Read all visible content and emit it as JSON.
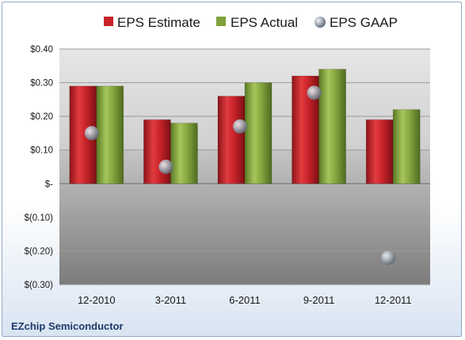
{
  "chart_data": {
    "type": "bar",
    "title": "",
    "company": "EZchip Semiconductor",
    "categories": [
      "12-2010",
      "3-2011",
      "6-2011",
      "9-2011",
      "12-2011"
    ],
    "series": [
      {
        "name": "EPS Estimate",
        "type": "bar",
        "color": "#c8232a",
        "values": [
          0.29,
          0.19,
          0.26,
          0.32,
          0.19
        ]
      },
      {
        "name": "EPS Actual",
        "type": "bar",
        "color": "#7ea13a",
        "values": [
          0.29,
          0.18,
          0.3,
          0.34,
          0.22
        ]
      },
      {
        "name": "EPS GAAP",
        "type": "marker",
        "color": "#9aa4ae",
        "values": [
          0.15,
          0.05,
          0.17,
          0.27,
          -0.22
        ]
      }
    ],
    "ylim": [
      -0.3,
      0.4
    ],
    "yticks": [
      0.4,
      0.3,
      0.2,
      0.1,
      0,
      -0.1,
      -0.2,
      -0.3
    ],
    "ytick_labels": [
      "$0.40",
      "$0.30",
      "$0.20",
      "$0.10",
      "$-",
      "$(0.10)",
      "$(0.20)",
      "$(0.30)"
    ],
    "grid": true,
    "legend_position": "top"
  }
}
